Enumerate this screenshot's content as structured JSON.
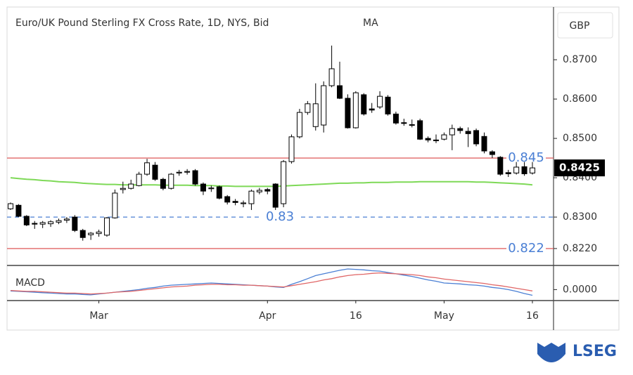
{
  "chart_data": {
    "type": "candlestick",
    "title": "Euro/UK Pound Sterling FX Cross Rate, 1D, NYS, Bid",
    "ylabel": "GBP",
    "grid": false,
    "up_color": "#ffffff",
    "down_color": "#000000",
    "edge_color": "#000000",
    "categories": [
      null,
      null,
      null,
      null,
      null,
      null,
      null,
      null,
      null,
      null,
      null,
      "Mar",
      null,
      null,
      null,
      null,
      null,
      null,
      null,
      null,
      null,
      null,
      null,
      null,
      null,
      null,
      null,
      null,
      null,
      null,
      null,
      null,
      "Apr",
      null,
      null,
      null,
      null,
      null,
      null,
      null,
      null,
      null,
      null,
      "16",
      null,
      null,
      null,
      null,
      null,
      null,
      null,
      null,
      null,
      null,
      "May",
      null,
      null,
      null,
      null,
      null,
      null,
      null,
      null,
      null,
      null,
      "16"
    ],
    "open": [
      0.8321,
      0.833,
      0.8302,
      0.8284,
      0.8282,
      0.8283,
      0.8287,
      0.8292,
      0.83,
      0.8266,
      0.8255,
      0.8258,
      0.8254,
      0.8298,
      0.837,
      0.8373,
      0.838,
      0.8409,
      0.8432,
      0.8396,
      0.8373,
      0.8412,
      0.8414,
      0.8418,
      0.8384,
      0.8372,
      0.8377,
      0.8352,
      0.834,
      0.8334,
      0.8334,
      0.8364,
      0.837,
      0.8384,
      0.8334,
      0.8441,
      0.8504,
      0.8566,
      0.853,
      0.8534,
      0.8634,
      0.8634,
      0.8602,
      0.8527,
      0.8611,
      0.8575,
      0.858,
      0.8605,
      0.8562,
      0.854,
      0.8535,
      0.8545,
      0.85,
      0.8496,
      0.8498,
      0.8509,
      0.8525,
      0.8518,
      0.852,
      0.8505,
      0.8466,
      0.8452,
      0.8413,
      0.8412,
      0.8428,
      0.8412
    ],
    "high": [
      0.8337,
      0.8333,
      0.8305,
      0.829,
      0.829,
      0.8292,
      0.8296,
      0.83,
      0.8305,
      0.827,
      0.8262,
      0.8268,
      0.83,
      0.837,
      0.839,
      0.8395,
      0.8415,
      0.8448,
      0.844,
      0.84,
      0.8412,
      0.842,
      0.8422,
      0.8422,
      0.8388,
      0.838,
      0.838,
      0.8356,
      0.8346,
      0.8342,
      0.837,
      0.8374,
      0.8374,
      0.8386,
      0.8445,
      0.851,
      0.8575,
      0.8595,
      0.864,
      0.8645,
      0.8736,
      0.8695,
      0.8612,
      0.862,
      0.8615,
      0.859,
      0.862,
      0.861,
      0.8568,
      0.855,
      0.8548,
      0.855,
      0.8505,
      0.851,
      0.8515,
      0.8535,
      0.853,
      0.8528,
      0.8525,
      0.8515,
      0.847,
      0.8455,
      0.842,
      0.844,
      0.844,
      0.844
    ],
    "low": [
      0.8318,
      0.83,
      0.8277,
      0.827,
      0.8272,
      0.8275,
      0.8282,
      0.8285,
      0.8262,
      0.824,
      0.8242,
      0.825,
      0.825,
      0.8296,
      0.836,
      0.837,
      0.8378,
      0.8405,
      0.8392,
      0.8368,
      0.837,
      0.8405,
      0.8408,
      0.838,
      0.8356,
      0.8364,
      0.8345,
      0.8332,
      0.833,
      0.8325,
      0.8318,
      0.8358,
      0.8358,
      0.8318,
      0.8325,
      0.8436,
      0.85,
      0.856,
      0.852,
      0.8515,
      0.863,
      0.86,
      0.8525,
      0.8525,
      0.8558,
      0.8565,
      0.8575,
      0.8558,
      0.8535,
      0.8532,
      0.8528,
      0.8496,
      0.849,
      0.8488,
      0.8495,
      0.847,
      0.8512,
      0.8478,
      0.848,
      0.8462,
      0.845,
      0.8405,
      0.8402,
      0.8408,
      0.8405,
      0.8408
    ],
    "close": [
      0.8334,
      0.8302,
      0.828,
      0.8282,
      0.8286,
      0.8288,
      0.8291,
      0.8295,
      0.8266,
      0.8248,
      0.8259,
      0.8262,
      0.8298,
      0.8361,
      0.8373,
      0.8384,
      0.8409,
      0.8438,
      0.8396,
      0.8373,
      0.8409,
      0.8414,
      0.8416,
      0.8384,
      0.8366,
      0.8374,
      0.8348,
      0.8338,
      0.8337,
      0.8336,
      0.8366,
      0.8368,
      0.8366,
      0.8325,
      0.8441,
      0.8504,
      0.8566,
      0.8588,
      0.8588,
      0.8634,
      0.8677,
      0.8602,
      0.8527,
      0.8616,
      0.8562,
      0.8572,
      0.8607,
      0.8562,
      0.8539,
      0.8538,
      0.8534,
      0.8498,
      0.8496,
      0.8494,
      0.8509,
      0.8525,
      0.852,
      0.8512,
      0.8486,
      0.8468,
      0.8459,
      0.8409,
      0.841,
      0.8427,
      0.841,
      0.8425
    ],
    "ma": {
      "name": "MA",
      "color": "#7ed957",
      "values": [
        0.84,
        0.8398,
        0.8396,
        0.8395,
        0.8393,
        0.8392,
        0.839,
        0.8389,
        0.8388,
        0.8386,
        0.8385,
        0.8384,
        0.8383,
        0.8383,
        0.8382,
        0.8382,
        0.8382,
        0.8382,
        0.8382,
        0.8381,
        0.8381,
        0.8381,
        0.8381,
        0.838,
        0.838,
        0.838,
        0.8379,
        0.8379,
        0.8378,
        0.8378,
        0.8378,
        0.8378,
        0.8378,
        0.8378,
        0.8379,
        0.838,
        0.8381,
        0.8382,
        0.8383,
        0.8384,
        0.8385,
        0.8386,
        0.8386,
        0.8387,
        0.8387,
        0.8388,
        0.8388,
        0.8388,
        0.8389,
        0.8389,
        0.8389,
        0.839,
        0.839,
        0.839,
        0.839,
        0.839,
        0.839,
        0.839,
        0.8389,
        0.8389,
        0.8388,
        0.8387,
        0.8386,
        0.8385,
        0.8384,
        0.8382
      ]
    },
    "ylim": [
      0.8177,
      0.8834
    ],
    "yticks": [
      {
        "value": 0.87,
        "label": "0.8700"
      },
      {
        "value": 0.86,
        "label": "0.8600"
      },
      {
        "value": 0.85,
        "label": "0.8500"
      },
      {
        "value": 0.84,
        "label": "0.8400"
      },
      {
        "value": 0.83,
        "label": "0.8300"
      },
      {
        "value": 0.822,
        "label": "0.8220"
      }
    ],
    "hlines": [
      {
        "value": 0.845,
        "color": "#e06666",
        "style": "solid"
      },
      {
        "value": 0.83,
        "color": "#4a7fd4",
        "style": "dashed"
      },
      {
        "value": 0.822,
        "color": "#e06666",
        "style": "solid"
      }
    ],
    "hline_label_color": "#4a7fd4",
    "last": 0.8425,
    "macd": {
      "label": "MACD",
      "ylim": [
        -0.0025,
        0.0055
      ],
      "yticks": [
        {
          "value": 0,
          "label": "0.0000"
        }
      ],
      "series": [
        {
          "color": "#4a7fd4",
          "values": [
            -0.0003,
            -0.0004,
            -0.0005,
            -0.0006,
            -0.0007,
            -0.0008,
            -0.0009,
            -0.001,
            -0.001,
            -0.0011,
            -0.0012,
            -0.001,
            -0.0008,
            -0.0006,
            -0.0004,
            -0.0002,
            0.0,
            0.0003,
            0.0005,
            0.0008,
            0.001,
            0.0011,
            0.0012,
            0.0013,
            0.0014,
            0.0015,
            0.0014,
            0.0013,
            0.0012,
            0.0011,
            0.001,
            0.0009,
            0.0008,
            0.0006,
            0.0005,
            0.0012,
            0.0018,
            0.0025,
            0.0032,
            0.0036,
            0.004,
            0.0044,
            0.0047,
            0.0046,
            0.0045,
            0.0043,
            0.0042,
            0.0039,
            0.0036,
            0.0033,
            0.003,
            0.0026,
            0.0022,
            0.0019,
            0.0015,
            0.0014,
            0.0013,
            0.0011,
            0.001,
            0.0008,
            0.0005,
            0.0003,
            0.0,
            -0.0004,
            -0.0009,
            -0.0013
          ]
        },
        {
          "color": "#e06666",
          "values": [
            -0.0002,
            -0.0003,
            -0.0004,
            -0.0004,
            -0.0005,
            -0.0006,
            -0.0007,
            -0.0008,
            -0.0008,
            -0.0009,
            -0.001,
            -0.0009,
            -0.0008,
            -0.0006,
            -0.0005,
            -0.0004,
            -0.0002,
            0.0,
            0.0002,
            0.0004,
            0.0006,
            0.0007,
            0.0008,
            0.001,
            0.0011,
            0.0012,
            0.0012,
            0.0011,
            0.0011,
            0.001,
            0.001,
            0.0009,
            0.0008,
            0.0007,
            0.0006,
            0.0009,
            0.0012,
            0.0015,
            0.0018,
            0.0022,
            0.0025,
            0.0029,
            0.0032,
            0.0034,
            0.0035,
            0.0037,
            0.0038,
            0.0037,
            0.0036,
            0.0035,
            0.0034,
            0.0032,
            0.0029,
            0.0027,
            0.0024,
            0.0022,
            0.002,
            0.0018,
            0.0016,
            0.0014,
            0.0011,
            0.0009,
            0.0006,
            0.0003,
            0.0,
            -0.0003
          ]
        }
      ]
    }
  },
  "footer": {
    "logo": "LSEG"
  }
}
